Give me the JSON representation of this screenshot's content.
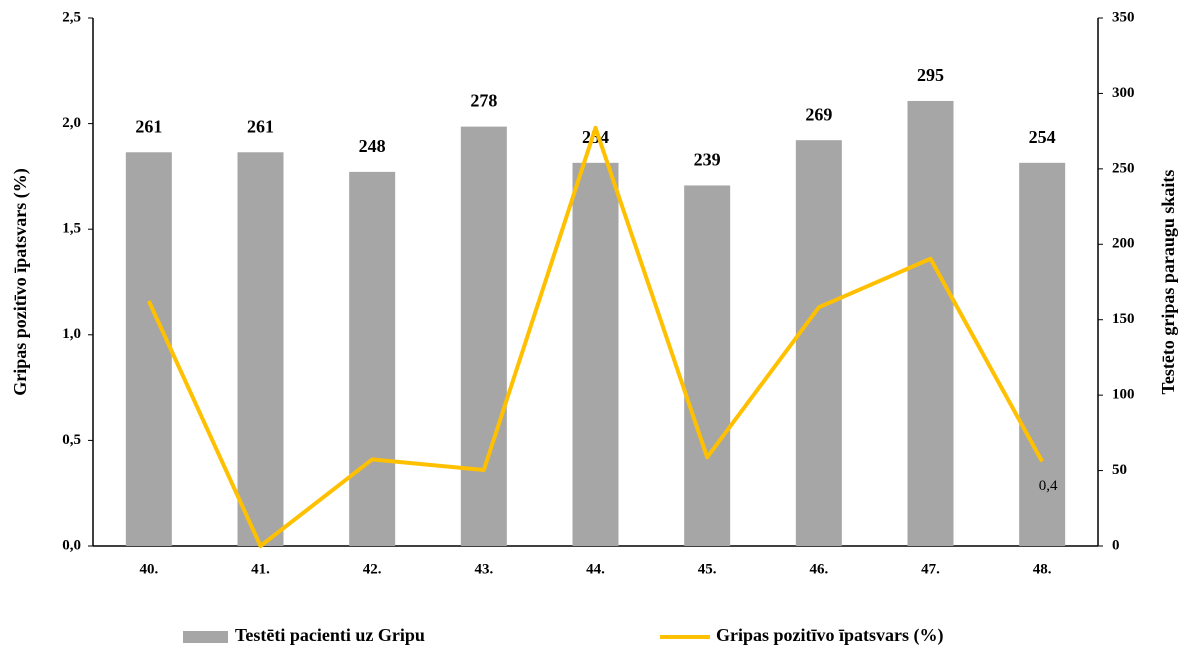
{
  "chart_data": {
    "type": "combo",
    "categories": [
      "40.",
      "41.",
      "42.",
      "43.",
      "44.",
      "45.",
      "46.",
      "47.",
      "48."
    ],
    "series": [
      {
        "name": "Testēti pacienti uz Gripu",
        "type": "bar",
        "axis": "y2",
        "color": "#a6a6a6",
        "values": [
          261,
          261,
          248,
          278,
          254,
          239,
          269,
          295,
          254
        ]
      },
      {
        "name": "Gripas pozitīvo īpatsvars (%)",
        "type": "line",
        "axis": "y",
        "color": "#ffc000",
        "values": [
          1.16,
          0,
          0.41,
          0.36,
          1.98,
          0.42,
          1.13,
          1.36,
          0.4
        ],
        "value_labels": [
          null,
          null,
          null,
          null,
          null,
          null,
          null,
          null,
          "0,4"
        ]
      }
    ],
    "y_label": "Gripas pozitīvo īpatsvars (%)",
    "y2_label": "Testēto gripas paraugu skaits",
    "ylim": [
      0,
      2.5
    ],
    "yticks": [
      {
        "value": 0,
        "label": "0,0"
      },
      {
        "value": 0.5,
        "label": "0,5"
      },
      {
        "value": 1,
        "label": "1,0"
      },
      {
        "value": 1.5,
        "label": "1,5"
      },
      {
        "value": 2,
        "label": "2,0"
      },
      {
        "value": 2.5,
        "label": "2,5"
      }
    ],
    "y2lim": [
      0,
      350
    ],
    "y2ticks": [
      0,
      50,
      100,
      150,
      200,
      250,
      300,
      350
    ],
    "legend": "bottom"
  }
}
